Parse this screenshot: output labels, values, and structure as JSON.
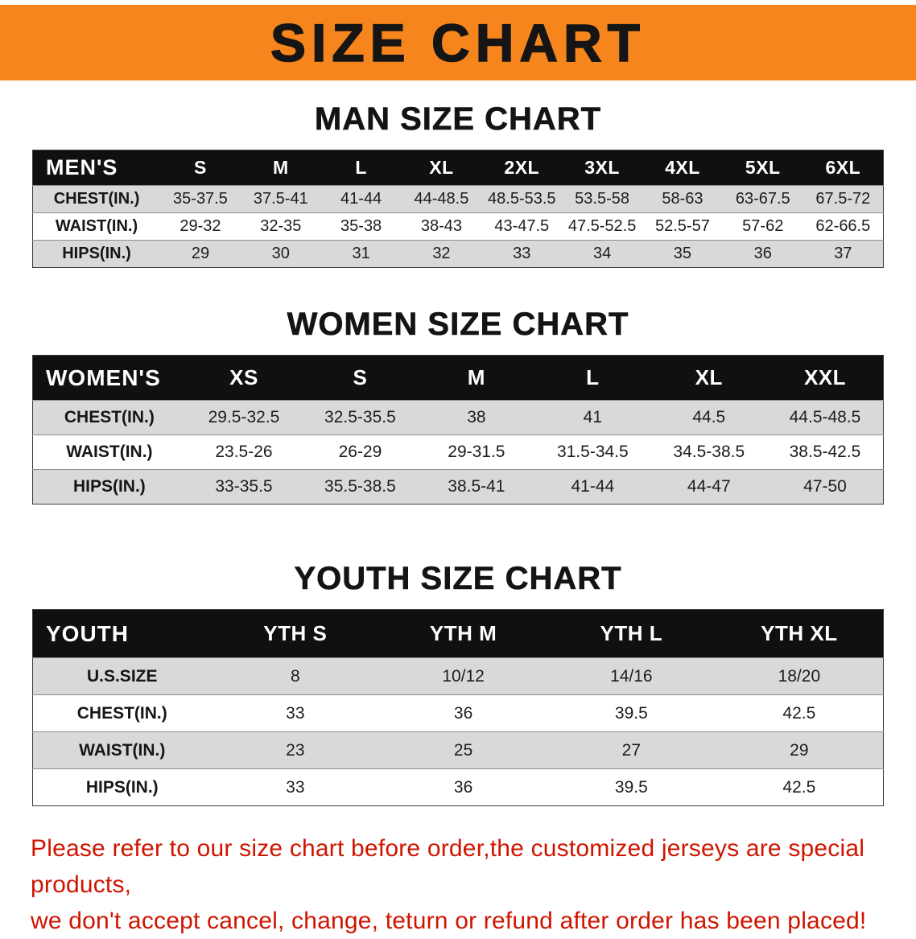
{
  "banner": {
    "title": "SIZE CHART"
  },
  "chart_data": [
    {
      "type": "table",
      "title": "MAN SIZE CHART",
      "columns": [
        "MEN'S",
        "S",
        "M",
        "L",
        "XL",
        "2XL",
        "3XL",
        "4XL",
        "5XL",
        "6XL"
      ],
      "rows": [
        [
          "CHEST(IN.)",
          "35-37.5",
          "37.5-41",
          "41-44",
          "44-48.5",
          "48.5-53.5",
          "53.5-58",
          "58-63",
          "63-67.5",
          "67.5-72"
        ],
        [
          "WAIST(IN.)",
          "29-32",
          "32-35",
          "35-38",
          "38-43",
          "43-47.5",
          "47.5-52.5",
          "52.5-57",
          "57-62",
          "62-66.5"
        ],
        [
          "HIPS(IN.)",
          "29",
          "30",
          "31",
          "32",
          "33",
          "34",
          "35",
          "36",
          "37"
        ]
      ]
    },
    {
      "type": "table",
      "title": "WOMEN SIZE CHART",
      "columns": [
        "WOMEN'S",
        "XS",
        "S",
        "M",
        "L",
        "XL",
        "XXL"
      ],
      "rows": [
        [
          "CHEST(IN.)",
          "29.5-32.5",
          "32.5-35.5",
          "38",
          "41",
          "44.5",
          "44.5-48.5"
        ],
        [
          "WAIST(IN.)",
          "23.5-26",
          "26-29",
          "29-31.5",
          "31.5-34.5",
          "34.5-38.5",
          "38.5-42.5"
        ],
        [
          "HIPS(IN.)",
          "33-35.5",
          "35.5-38.5",
          "38.5-41",
          "41-44",
          "44-47",
          "47-50"
        ]
      ]
    },
    {
      "type": "table",
      "title": "YOUTH SIZE CHART",
      "columns": [
        "YOUTH",
        "YTH S",
        "YTH M",
        "YTH L",
        "YTH XL"
      ],
      "rows": [
        [
          "U.S.SIZE",
          "8",
          "10/12",
          "14/16",
          "18/20"
        ],
        [
          "CHEST(IN.)",
          "33",
          "36",
          "39.5",
          "42.5"
        ],
        [
          "WAIST(IN.)",
          "23",
          "25",
          "27",
          "29"
        ],
        [
          "HIPS(IN.)",
          "33",
          "36",
          "39.5",
          "42.5"
        ]
      ]
    }
  ],
  "footer": {
    "line1": "Please refer to our size chart before order,the customized jerseys are special products,",
    "line2": "we don't accept cancel, change, teturn or refund after order has been placed!"
  },
  "colors": {
    "banner_bg": "#f5851c",
    "table_header_bg": "#101010",
    "stripe_bg": "#d9d9d9",
    "footer_text": "#cf1500"
  }
}
